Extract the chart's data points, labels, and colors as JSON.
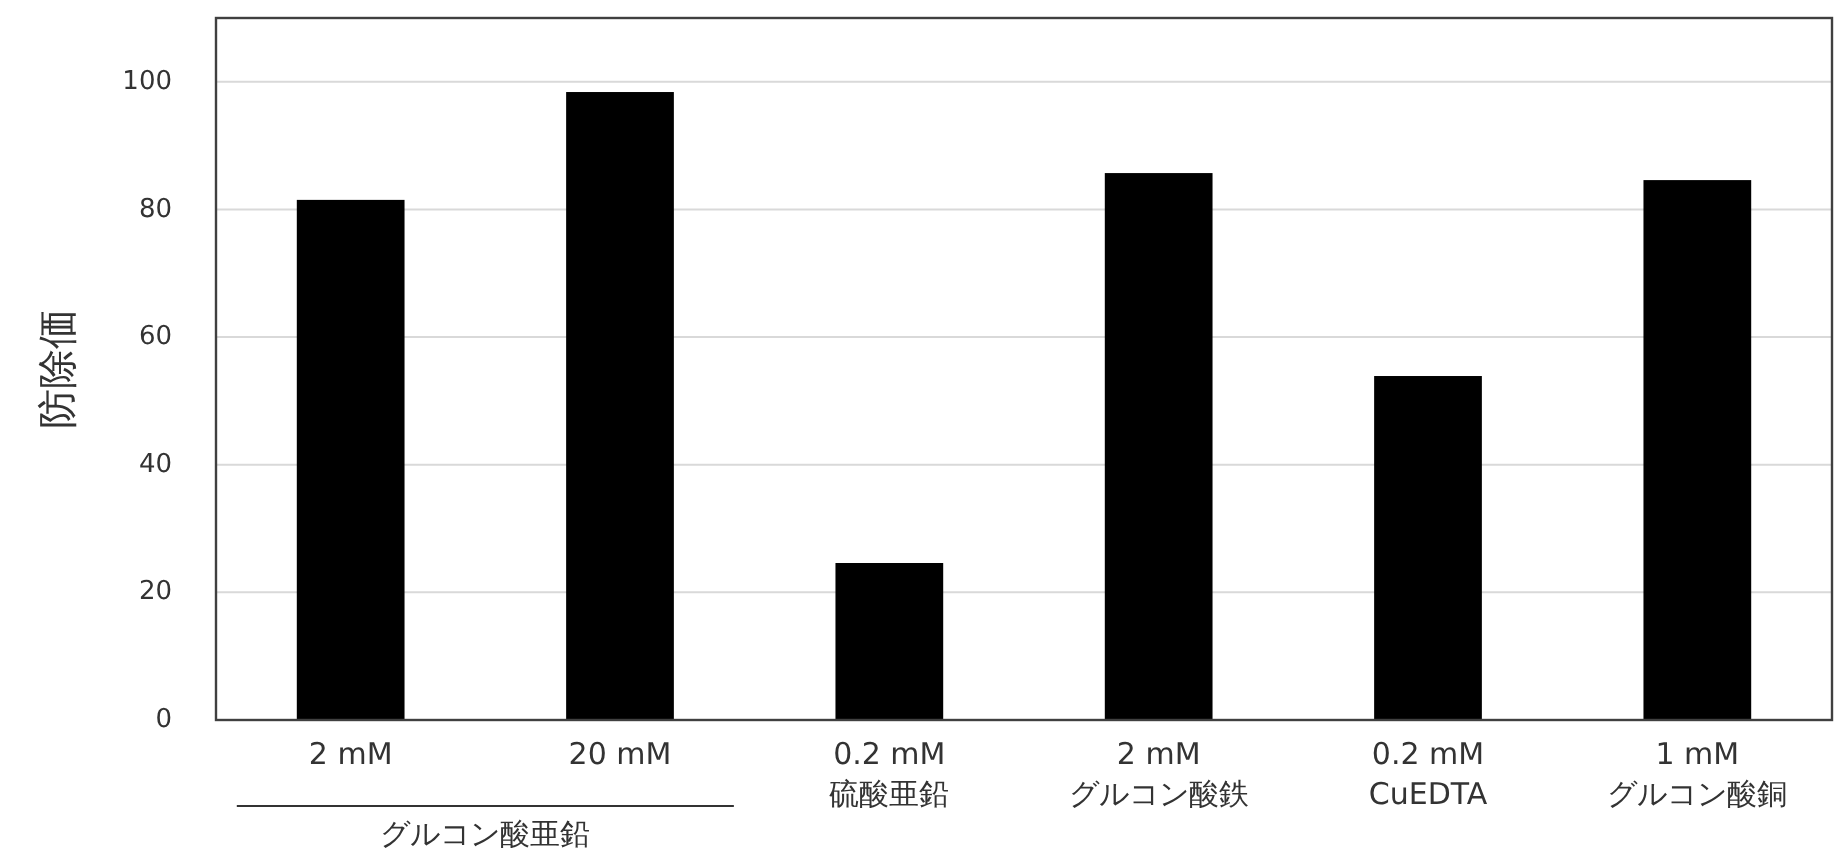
{
  "chart_data": {
    "type": "bar",
    "ylabel": "防除価",
    "categories": [
      "2 mM",
      "20 mM",
      "0.2 mM\n硫酸亜鉛",
      "2 mM\nグルコン酸鉄",
      "0.2 mM\nCuEDTA",
      "1 mM\nグルコン酸銅"
    ],
    "values": [
      81.5,
      98.4,
      24.6,
      85.7,
      53.9,
      84.6
    ],
    "color": "#000000",
    "ylim": [
      0,
      110
    ],
    "yticks": [
      0,
      20,
      40,
      60,
      80,
      100
    ],
    "grid": "y",
    "annotations": [
      "グルコン酸亜鉛"
    ]
  }
}
